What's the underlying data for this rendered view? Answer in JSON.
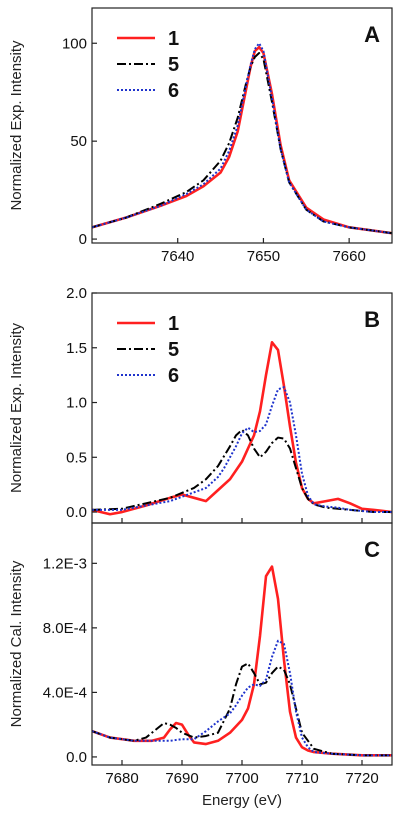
{
  "colors": {
    "s1": "#ff2020",
    "s5": "#000000",
    "s6": "#1f33cc"
  },
  "chart_data": [
    {
      "panel": "A",
      "type": "line",
      "xlabel": "",
      "ylabel": "Normalized Exp. Intensity",
      "xlim": [
        7630,
        7665
      ],
      "ylim": [
        -2,
        118
      ],
      "xticks": [
        7640,
        7650,
        7660
      ],
      "xtick_labels": [
        "7640",
        "7650",
        "7660"
      ],
      "yticks": [
        0,
        50,
        100
      ],
      "ytick_labels": [
        "0",
        "50",
        "100"
      ],
      "legend": "top-left",
      "series": [
        {
          "name": "1",
          "style": "solid",
          "color": "#ff2020",
          "x": [
            7630,
            7634,
            7638,
            7641,
            7643,
            7645,
            7646,
            7647,
            7648,
            7648.5,
            7649,
            7649.5,
            7650,
            7651,
            7652,
            7653,
            7655,
            7657,
            7660,
            7665
          ],
          "y": [
            6,
            11,
            17,
            22,
            27,
            34,
            42,
            55,
            77,
            88,
            96,
            98,
            95,
            74,
            48,
            30,
            16,
            10,
            6,
            3
          ]
        },
        {
          "name": "5",
          "style": "dashdot",
          "color": "#000000",
          "x": [
            7630,
            7634,
            7638,
            7641,
            7643,
            7645,
            7646,
            7647,
            7648,
            7648.5,
            7649,
            7649.5,
            7650,
            7651,
            7652,
            7653,
            7655,
            7657,
            7660,
            7665
          ],
          "y": [
            6,
            11,
            18,
            24,
            30,
            40,
            49,
            62,
            80,
            88,
            93,
            95,
            92,
            70,
            46,
            29,
            15,
            9,
            6,
            3
          ]
        },
        {
          "name": "6",
          "style": "dotted",
          "color": "#1f33cc",
          "x": [
            7630,
            7634,
            7638,
            7641,
            7643,
            7645,
            7646,
            7647,
            7648,
            7648.5,
            7649,
            7649.5,
            7650,
            7651,
            7652,
            7653,
            7655,
            7657,
            7660,
            7665
          ],
          "y": [
            6,
            11,
            17,
            23,
            28,
            36,
            45,
            58,
            79,
            89,
            97,
            100,
            96,
            72,
            46,
            29,
            15,
            9,
            6,
            3
          ]
        }
      ]
    },
    {
      "panel": "B",
      "type": "line",
      "xlabel": "",
      "ylabel": "Normalized Exp. Intensity",
      "xlim": [
        7675,
        7725
      ],
      "ylim": [
        -0.1,
        2.0
      ],
      "xticks": [
        7680,
        7690,
        7700,
        7710,
        7720
      ],
      "xtick_labels": [],
      "yticks": [
        0.0,
        0.5,
        1.0,
        1.5,
        2.0
      ],
      "ytick_labels": [
        "0.0",
        "0.5",
        "1.0",
        "1.5",
        "2.0"
      ],
      "legend": "top-left",
      "series": [
        {
          "name": "1",
          "style": "solid",
          "color": "#ff2020",
          "x": [
            7675,
            7678,
            7680,
            7684,
            7688,
            7690,
            7692,
            7694,
            7696,
            7698,
            7700,
            7701,
            7702,
            7703,
            7704,
            7705,
            7706,
            7707,
            7708,
            7709,
            7710,
            7711,
            7712,
            7714,
            7716,
            7718,
            7720,
            7722,
            7725
          ],
          "y": [
            0.02,
            -0.02,
            0.0,
            0.06,
            0.13,
            0.16,
            0.13,
            0.1,
            0.2,
            0.3,
            0.46,
            0.58,
            0.7,
            0.92,
            1.25,
            1.55,
            1.48,
            1.15,
            0.78,
            0.45,
            0.22,
            0.12,
            0.08,
            0.1,
            0.12,
            0.08,
            0.03,
            0.02,
            0.0
          ]
        },
        {
          "name": "5",
          "style": "dashdot",
          "color": "#000000",
          "x": [
            7675,
            7680,
            7684,
            7688,
            7692,
            7694,
            7696,
            7698,
            7699,
            7700,
            7701,
            7702,
            7703,
            7704,
            7705,
            7706,
            7707,
            7708,
            7709,
            7710,
            7711,
            7712,
            7714,
            7716,
            7718,
            7720,
            7722,
            7725
          ],
          "y": [
            0.02,
            0.03,
            0.08,
            0.13,
            0.22,
            0.3,
            0.42,
            0.6,
            0.7,
            0.75,
            0.7,
            0.58,
            0.5,
            0.55,
            0.63,
            0.68,
            0.67,
            0.58,
            0.4,
            0.22,
            0.12,
            0.07,
            0.04,
            0.03,
            0.02,
            0.01,
            0.0,
            0.0
          ]
        },
        {
          "name": "6",
          "style": "dotted",
          "color": "#1f33cc",
          "x": [
            7675,
            7680,
            7684,
            7688,
            7692,
            7694,
            7696,
            7697,
            7698,
            7699,
            7700,
            7701,
            7702,
            7703,
            7704,
            7705,
            7706,
            7707,
            7708,
            7709,
            7710,
            7711,
            7712,
            7714,
            7716,
            7718,
            7720,
            7722,
            7725
          ],
          "y": [
            0.02,
            0.02,
            0.06,
            0.1,
            0.18,
            0.22,
            0.32,
            0.4,
            0.5,
            0.6,
            0.72,
            0.77,
            0.73,
            0.74,
            0.8,
            0.97,
            1.12,
            1.14,
            1.0,
            0.7,
            0.35,
            0.15,
            0.07,
            0.05,
            0.04,
            0.02,
            0.01,
            0.0,
            0.0
          ]
        }
      ]
    },
    {
      "panel": "C",
      "type": "line",
      "xlabel": "Energy (eV)",
      "ylabel": "Normalized Cal. Intensity",
      "xlim": [
        7675,
        7725
      ],
      "ylim": [
        -5e-05,
        0.00145
      ],
      "xticks": [
        7680,
        7690,
        7700,
        7710,
        7720
      ],
      "xtick_labels": [
        "7680",
        "7690",
        "7700",
        "7710",
        "7720"
      ],
      "yticks": [
        0.0,
        0.0004,
        0.0008,
        0.0012
      ],
      "ytick_labels": [
        "0.0",
        "4.0E-4",
        "8.0E-4",
        "1.2E-3"
      ],
      "legend": "",
      "series": [
        {
          "name": "1",
          "style": "solid",
          "color": "#ff2020",
          "x": [
            7675,
            7678,
            7682,
            7685,
            7687,
            7688,
            7689,
            7690,
            7691,
            7692,
            7694,
            7696,
            7698,
            7700,
            7701,
            7702,
            7703,
            7704,
            7705,
            7706,
            7707,
            7708,
            7709,
            7710,
            7711,
            7712,
            7715,
            7720,
            7725
          ],
          "y": [
            0.00016,
            0.00012,
            0.0001,
            0.0001,
            0.00012,
            0.00017,
            0.00021,
            0.0002,
            0.00014,
            9e-05,
            8e-05,
            0.0001,
            0.00015,
            0.00023,
            0.0003,
            0.00045,
            0.00075,
            0.00112,
            0.00118,
            0.00098,
            0.0006,
            0.00028,
            0.00012,
            6e-05,
            4e-05,
            3e-05,
            2e-05,
            1e-05,
            1e-05
          ]
        },
        {
          "name": "5",
          "style": "dashdot",
          "color": "#000000",
          "x": [
            7675,
            7678,
            7682,
            7684,
            7686,
            7687,
            7688,
            7689,
            7690,
            7692,
            7694,
            7696,
            7698,
            7699,
            7700,
            7701,
            7702,
            7703,
            7704,
            7705,
            7706,
            7707,
            7708,
            7709,
            7710,
            7712,
            7715,
            7720,
            7725
          ],
          "y": [
            0.00016,
            0.00012,
            0.0001,
            0.00012,
            0.00018,
            0.00021,
            0.0002,
            0.00018,
            0.00015,
            0.00012,
            0.00013,
            0.00015,
            0.0003,
            0.00045,
            0.00056,
            0.00058,
            0.00052,
            0.00045,
            0.00046,
            0.00052,
            0.00056,
            0.00054,
            0.00045,
            0.0003,
            0.00015,
            5e-05,
            2e-05,
            1e-05,
            1e-05
          ]
        },
        {
          "name": "6",
          "style": "dotted",
          "color": "#1f33cc",
          "x": [
            7675,
            7678,
            7682,
            7685,
            7688,
            7690,
            7692,
            7694,
            7696,
            7698,
            7699,
            7700,
            7701,
            7702,
            7703,
            7704,
            7705,
            7706,
            7707,
            7708,
            7709,
            7710,
            7711,
            7712,
            7715,
            7720,
            7725
          ],
          "y": [
            0.00016,
            0.00012,
            0.0001,
            0.0001,
            0.0001,
            0.00011,
            0.00011,
            0.00016,
            0.00022,
            0.00027,
            0.00032,
            0.00038,
            0.00043,
            0.00045,
            0.00044,
            0.00048,
            0.00062,
            0.00072,
            0.0007,
            0.00052,
            0.00028,
            0.00012,
            6e-05,
            3e-05,
            2e-05,
            1e-05,
            1e-05
          ]
        }
      ]
    }
  ]
}
